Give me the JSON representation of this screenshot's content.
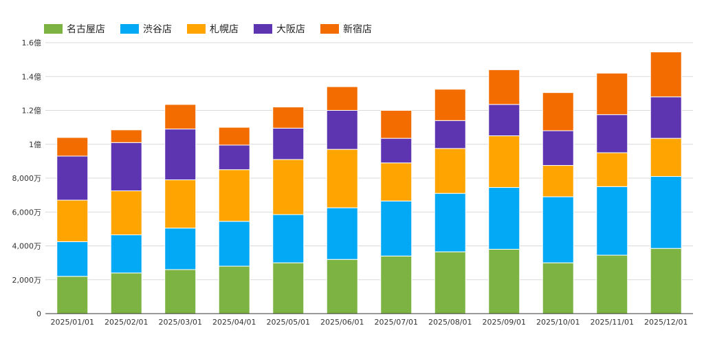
{
  "colors": {
    "名古屋店": "#7cb342",
    "渋谷店": "#03a9f4",
    "札幌店": "#ffa400",
    "大阪店": "#5e35b1",
    "新宿店": "#f26c00"
  },
  "chart_data": {
    "type": "bar",
    "stacked": true,
    "legend_position": "top-left",
    "grid": true,
    "ylim": [
      0,
      160000000
    ],
    "y_ticks": [
      {
        "value": 0,
        "label": "0"
      },
      {
        "value": 20000000,
        "label": "2,000万"
      },
      {
        "value": 40000000,
        "label": "4,000万"
      },
      {
        "value": 60000000,
        "label": "6,000万"
      },
      {
        "value": 80000000,
        "label": "8,000万"
      },
      {
        "value": 100000000,
        "label": "1億"
      },
      {
        "value": 120000000,
        "label": "1.2億"
      },
      {
        "value": 140000000,
        "label": "1.4億"
      },
      {
        "value": 160000000,
        "label": "1.6億"
      }
    ],
    "categories": [
      "2025/01/01",
      "2025/02/01",
      "2025/03/01",
      "2025/04/01",
      "2025/05/01",
      "2025/06/01",
      "2025/07/01",
      "2025/08/01",
      "2025/09/01",
      "2025/10/01",
      "2025/11/01",
      "2025/12/01"
    ],
    "series": [
      {
        "name": "名古屋店",
        "values": [
          22000000,
          24000000,
          26000000,
          28000000,
          30000000,
          32000000,
          34000000,
          36500000,
          38000000,
          30000000,
          34500000,
          38500000
        ]
      },
      {
        "name": "渋谷店",
        "values": [
          20500000,
          22500000,
          24500000,
          26500000,
          28500000,
          30500000,
          32500000,
          34500000,
          36500000,
          39000000,
          40500000,
          42500000
        ]
      },
      {
        "name": "札幌店",
        "values": [
          24500000,
          26000000,
          28500000,
          30500000,
          32500000,
          34500000,
          22500000,
          26500000,
          30500000,
          18500000,
          20000000,
          22500000
        ]
      },
      {
        "name": "大阪店",
        "values": [
          26000000,
          28500000,
          30000000,
          14500000,
          18500000,
          23000000,
          14500000,
          16500000,
          18500000,
          20500000,
          22500000,
          24500000
        ]
      },
      {
        "name": "新宿店",
        "values": [
          11000000,
          7500000,
          14500000,
          10500000,
          12500000,
          14000000,
          16500000,
          18500000,
          20500000,
          22500000,
          24500000,
          26500000
        ]
      }
    ]
  }
}
